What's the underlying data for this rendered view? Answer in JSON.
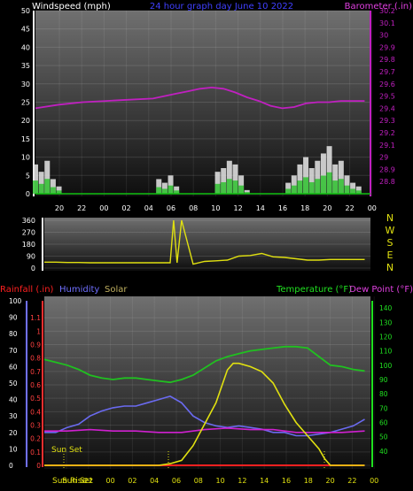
{
  "panel1": {
    "left_title": "Windspeed (mph)",
    "center_title": "24 hour graph day   June 10 2022",
    "right_title": "Barometer (.in)"
  },
  "panel3": {
    "rain_label": "Rainfall (.in)",
    "humidity_label": "Humidity",
    "solar_label": "Solar",
    "temp_label": "Temperature (°F)",
    "dew_label": "Dew Point (°F)",
    "sunrise_label": "Sun Rise",
    "sunset_label": "Sun Set"
  },
  "colors": {
    "wind_grid": "#ffffff",
    "barometer": "#c020c0",
    "wind_green": "#10c010",
    "direction": "#e0e010",
    "rain": "#ff2020",
    "humidity": "#6a6af0",
    "temperature": "#20c020",
    "dew": "#d020d0",
    "solar": "#e0e010"
  },
  "chart_data": [
    {
      "type": "line",
      "x_tick_labels": [
        "20",
        "22",
        "00",
        "02",
        "04",
        "06",
        "08",
        "10",
        "12",
        "14",
        "16",
        "18",
        "20",
        "22",
        "00"
      ],
      "left_axis": {
        "ylim": [
          0,
          50
        ],
        "ticks": [
          "0",
          "5",
          "10",
          "15",
          "20",
          "25",
          "30",
          "35",
          "40",
          "45",
          "50"
        ]
      },
      "right_axis": {
        "ylim": [
          28.7,
          30.2
        ],
        "ticks": [
          "28.8",
          "28.9",
          "29",
          "29.1",
          "29.2",
          "29.3",
          "29.4",
          "29.5",
          "29.6",
          "29.7",
          "29.8",
          "29.9",
          "30",
          "30.1",
          "30.2"
        ]
      },
      "series": [
        {
          "name": "Windspeed (mph)",
          "hours": [
            0,
            0.5,
            1,
            1.5,
            2,
            2.5,
            3,
            3.5,
            4,
            4.5,
            5,
            5.5,
            6,
            6.5,
            7,
            7.5,
            8,
            8.5,
            9,
            9.5,
            10,
            10.5,
            11,
            11.5,
            12,
            12.5,
            13,
            13.5,
            14,
            14.5,
            15,
            15.5,
            16,
            16.5,
            17,
            17.5,
            18,
            18.5,
            19,
            19.5,
            20,
            20.5,
            21,
            21.5,
            22,
            22.5,
            23,
            23.5,
            24,
            24.5,
            25,
            25.5,
            26,
            26.5,
            27,
            27.5,
            28
          ],
          "values": [
            8,
            6,
            9,
            4,
            2,
            0,
            0,
            0,
            0,
            0,
            0,
            0,
            0,
            0,
            0,
            0,
            0,
            0,
            0,
            0,
            0,
            4,
            3,
            5,
            2,
            0,
            0,
            0,
            0,
            0,
            0,
            6,
            7,
            9,
            8,
            5,
            1,
            0,
            0,
            0,
            0,
            0,
            0,
            3,
            5,
            8,
            10,
            7,
            9,
            11,
            13,
            8,
            9,
            5,
            3,
            2,
            0
          ]
        },
        {
          "name": "Barometer (.in)",
          "hours": [
            0,
            2,
            4,
            6,
            8,
            10,
            12,
            13,
            14,
            15,
            16,
            17,
            18,
            19,
            20,
            21,
            22,
            23,
            24,
            25,
            26,
            27,
            28
          ],
          "values": [
            29.4,
            29.43,
            29.45,
            29.46,
            29.47,
            29.48,
            29.52,
            29.54,
            29.56,
            29.57,
            29.56,
            29.53,
            29.49,
            29.46,
            29.42,
            29.4,
            29.41,
            29.44,
            29.45,
            29.45,
            29.46,
            29.46,
            29.46
          ]
        }
      ]
    },
    {
      "type": "line",
      "x_tick_labels": [
        "20",
        "22",
        "00",
        "02",
        "04",
        "06",
        "08",
        "10",
        "12",
        "14",
        "16",
        "18",
        "20",
        "22",
        "00"
      ],
      "left_axis": {
        "ylim": [
          0,
          360
        ],
        "ticks": [
          "0",
          "90",
          "180",
          "270",
          "360"
        ]
      },
      "right_axis_labels": [
        "N",
        "W",
        "S",
        "E",
        "N"
      ],
      "series": [
        {
          "name": "Wind Direction",
          "hours": [
            0,
            1,
            2,
            3,
            4,
            5,
            6,
            7,
            8,
            9,
            10,
            11,
            11.3,
            11.6,
            12,
            13,
            14,
            15,
            16,
            17,
            18,
            19,
            20,
            21,
            22,
            23,
            24,
            25,
            26,
            27,
            28
          ],
          "values": [
            45,
            45,
            42,
            42,
            40,
            40,
            40,
            40,
            40,
            40,
            40,
            40,
            360,
            40,
            360,
            30,
            50,
            55,
            60,
            90,
            95,
            110,
            85,
            80,
            70,
            60,
            60,
            65,
            65,
            65,
            65
          ]
        }
      ]
    },
    {
      "type": "line",
      "x_tick_labels": [
        "20",
        "22",
        "00",
        "02",
        "04",
        "06",
        "08",
        "10",
        "12",
        "14",
        "16",
        "18",
        "20",
        "22",
        "00"
      ],
      "left_axis_rain": {
        "ylim": [
          0,
          1.2
        ],
        "ticks": [
          "0",
          "0.1",
          "0.2",
          "0.3",
          "0.4",
          "0.5",
          "0.6",
          "0.7",
          "0.8",
          "0.9",
          "1",
          "1.1"
        ]
      },
      "left_axis_humidity": {
        "ylim": [
          0,
          100
        ],
        "ticks": [
          "0",
          "10",
          "20",
          "30",
          "40",
          "50",
          "60",
          "70",
          "80",
          "90",
          "100"
        ]
      },
      "right_axis": {
        "ylim": [
          30,
          145
        ],
        "ticks": [
          "40",
          "50",
          "60",
          "70",
          "80",
          "90",
          "100",
          "110",
          "120",
          "130",
          "140"
        ]
      },
      "series": [
        {
          "name": "Rainfall (.in)",
          "hours": [
            0,
            28
          ],
          "values": [
            0,
            0
          ]
        },
        {
          "name": "Humidity",
          "hours": [
            0,
            1,
            2,
            3,
            4,
            5,
            6,
            7,
            8,
            9,
            10,
            11,
            12,
            13,
            14,
            15,
            16,
            17,
            18,
            19,
            20,
            21,
            22,
            23,
            24,
            25,
            26,
            27,
            28
          ],
          "values": [
            20,
            20,
            23,
            25,
            30,
            33,
            35,
            36,
            36,
            38,
            40,
            42,
            38,
            30,
            26,
            24,
            23,
            24,
            23,
            22,
            20,
            20,
            18,
            18,
            19,
            20,
            22,
            24,
            28
          ]
        },
        {
          "name": "Temperature (°F)",
          "hours": [
            0,
            1,
            2,
            3,
            4,
            5,
            6,
            7,
            8,
            9,
            10,
            11,
            12,
            13,
            14,
            15,
            16,
            17,
            18,
            19,
            20,
            21,
            22,
            23,
            24,
            25,
            26,
            27,
            28
          ],
          "values": [
            104,
            102,
            100,
            97,
            93,
            91,
            90,
            91,
            91,
            90,
            89,
            88,
            90,
            93,
            98,
            103,
            106,
            108,
            110,
            111,
            112,
            113,
            113,
            112,
            106,
            100,
            99,
            97,
            96
          ]
        },
        {
          "name": "Dew Point (°F)",
          "hours": [
            0,
            2,
            4,
            6,
            8,
            10,
            12,
            14,
            16,
            18,
            20,
            22,
            24,
            26,
            28
          ],
          "values": [
            54,
            54,
            55,
            54,
            54,
            53,
            53,
            55,
            56,
            55,
            55,
            53,
            53,
            53,
            54
          ]
        },
        {
          "name": "Solar",
          "hours": [
            0,
            10,
            11,
            12,
            13,
            14,
            15,
            16,
            16.5,
            17,
            18,
            19,
            20,
            21,
            22,
            23,
            24,
            24.5,
            25,
            26,
            28
          ],
          "values": [
            0,
            0,
            1,
            3,
            12,
            25,
            38,
            58,
            62,
            62,
            60,
            57,
            50,
            37,
            26,
            18,
            10,
            4,
            0,
            0,
            0
          ]
        }
      ]
    }
  ]
}
